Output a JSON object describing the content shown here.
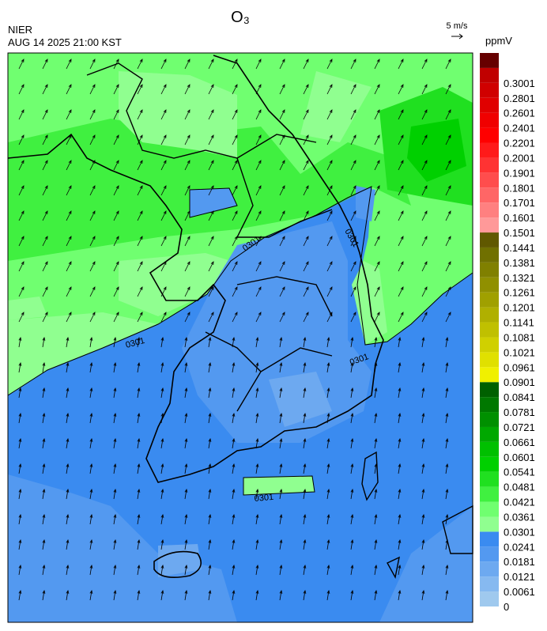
{
  "header": {
    "title": "O₃",
    "agency": "NIER",
    "datetime": "AUG 14 2025 21:00 KST",
    "wind_scale": "5 m/s"
  },
  "colorbar": {
    "unit": "ppmV",
    "levels": [
      0,
      0.0061,
      0.0121,
      0.0181,
      0.0241,
      0.0301,
      0.0361,
      0.0421,
      0.0481,
      0.0541,
      0.0601,
      0.0661,
      0.0721,
      0.0781,
      0.0841,
      0.0901,
      0.0961,
      0.1021,
      0.1081,
      0.1141,
      0.1201,
      0.1261,
      0.1321,
      0.1381,
      0.1441,
      0.1501,
      0.1601,
      0.1701,
      0.1801,
      0.1901,
      0.2001,
      0.2201,
      0.2401,
      0.2601,
      0.2801,
      0.3001
    ],
    "colors": []
  },
  "contour_labels": [
    "0301",
    "0301",
    "0301",
    "0301",
    "0301"
  ]
}
